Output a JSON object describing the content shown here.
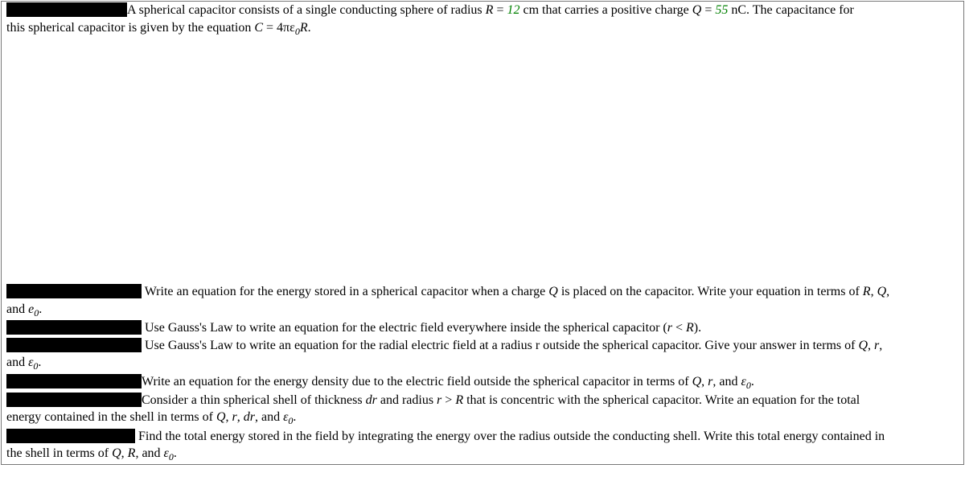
{
  "header": {
    "line1_a": "A spherical capacitor consists of a single conducting sphere of radius ",
    "R_eq": "R",
    "eq1": " = ",
    "val_R": "12",
    "unit_R": " cm that carries a positive charge ",
    "Q_eq": "Q",
    "eq2": " = ",
    "val_Q": "55",
    "unit_Q": " nC. The capacitance for",
    "line2_a": "this spherical capacitor is given by the equation ",
    "C_eq": "C",
    "eq3": " = 4πε",
    "sub0a": "0",
    "R2": "R",
    "dot": "."
  },
  "q1": {
    "text_a": " Write an equation for the energy stored in a spherical capacitor when a charge ",
    "Q": "Q",
    "text_b": " is placed on the capacitor. Write your equation in terms of ",
    "R": "R",
    "comma": ", ",
    "Q2": "Q",
    "comma2": ",",
    "line2_a": "and ",
    "e": "e",
    "sub0": "0",
    "dot": "."
  },
  "q2": {
    "text_a": " Use Gauss's Law to write an equation for the electric field everywhere inside the spherical capacitor (",
    "r": "r",
    "lt": " < ",
    "R": "R",
    "text_b": ")."
  },
  "q3": {
    "text_a": " Use Gauss's Law to write an equation for the radial electric field at a radius r outside the spherical capacitor. Give your answer in terms of ",
    "Q": "Q",
    "c1": ", ",
    "r": "r",
    "c2": ",",
    "line2_a": "and ",
    "eps": "ε",
    "sub0": "0",
    "dot": "."
  },
  "q4": {
    "text_a": "Write an equation for the energy density due to the electric field outside the spherical capacitor in terms of ",
    "Q": "Q",
    "c1": ", ",
    "r": "r",
    "c2": ", and ",
    "eps": "ε",
    "sub0": "0",
    "dot": "."
  },
  "q5": {
    "text_a": "Consider a thin spherical shell of thickness ",
    "dr": "dr",
    "text_b": " and radius ",
    "r": "r",
    "gt": " > ",
    "R": "R",
    "text_c": " that is concentric with the spherical capacitor. Write an equation for the total",
    "line2_a": "energy contained in the shell in terms of ",
    "Q": "Q",
    "c1": ", ",
    "r2": "r",
    "c2": ", ",
    "dr2": "dr",
    "c3": ", and ",
    "eps": "ε",
    "sub0": "0",
    "dot": "."
  },
  "q6": {
    "text_a": " Find the total energy stored in the field by integrating the energy over the radius outside the conducting shell. Write this total energy contained in",
    "line2_a": "the shell in terms of ",
    "Q": "Q",
    "c1": ", ",
    "R": "R",
    "c2": ", and ",
    "eps": "ε",
    "sub0": "0",
    "dot": "."
  }
}
